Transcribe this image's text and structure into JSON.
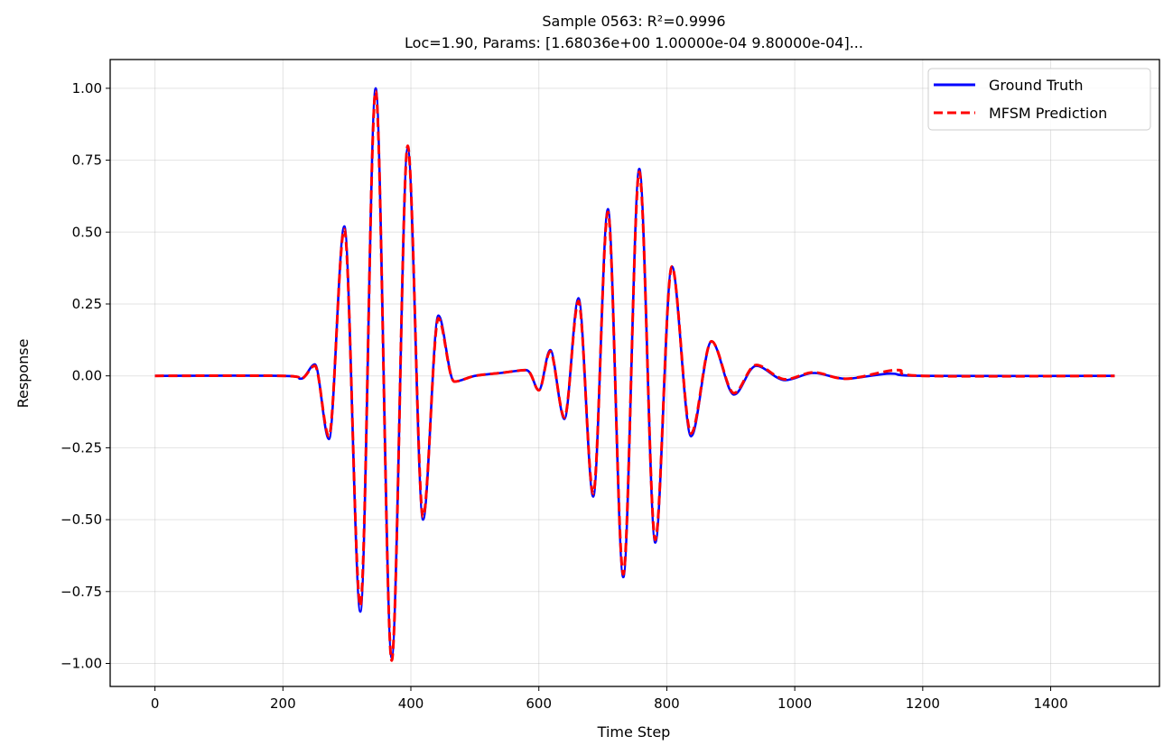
{
  "chart_data": {
    "type": "line",
    "title": "Sample 0563: R²=0.9996",
    "subtitle": "Loc=1.90, Params: [1.68036e+00 1.00000e-04 9.80000e-04]...",
    "xlabel": "Time Step",
    "ylabel": "Response",
    "xlim": [
      -70,
      1570
    ],
    "ylim": [
      -1.08,
      1.1
    ],
    "x_ticks": [
      0,
      200,
      400,
      600,
      800,
      1000,
      1200,
      1400
    ],
    "x_tick_labels": [
      "0",
      "200",
      "400",
      "600",
      "800",
      "1000",
      "1200",
      "1400"
    ],
    "y_ticks": [
      1.0,
      0.75,
      0.5,
      0.25,
      0.0,
      -0.25,
      -0.5,
      -0.75,
      -1.0
    ],
    "y_tick_labels": [
      "1.00",
      "0.75",
      "0.50",
      "0.25",
      "0.00",
      "−0.25",
      "−0.50",
      "−0.75",
      "−1.00"
    ],
    "grid": true,
    "legend_position": "top-right",
    "series": [
      {
        "name": "Ground Truth",
        "color": "#0000ff",
        "style": "solid",
        "x": [
          0,
          200,
          228,
          250,
          272,
          296,
          321,
          345,
          370,
          395,
          419,
          443,
          468,
          500,
          540,
          580,
          600,
          618,
          640,
          662,
          685,
          708,
          732,
          757,
          782,
          808,
          838,
          870,
          905,
          940,
          985,
          1030,
          1080,
          1150,
          1200,
          1500
        ],
        "y": [
          0.0,
          0.0,
          -0.01,
          0.04,
          -0.22,
          0.52,
          -0.82,
          1.0,
          -0.98,
          0.79,
          -0.5,
          0.21,
          -0.02,
          0.0,
          0.01,
          0.02,
          -0.05,
          0.09,
          -0.15,
          0.27,
          -0.42,
          0.58,
          -0.7,
          0.72,
          -0.58,
          0.38,
          -0.21,
          0.12,
          -0.065,
          0.035,
          -0.015,
          0.01,
          -0.01,
          0.008,
          0.0,
          0.0
        ]
      },
      {
        "name": "MFSM Prediction",
        "color": "#ff0000",
        "style": "dashed",
        "x": [
          0,
          200,
          228,
          250,
          272,
          296,
          321,
          345,
          370,
          395,
          419,
          443,
          468,
          500,
          540,
          580,
          600,
          618,
          640,
          662,
          685,
          708,
          732,
          757,
          782,
          808,
          838,
          870,
          905,
          940,
          985,
          1030,
          1080,
          1160,
          1200,
          1500
        ],
        "y": [
          0.0,
          0.0,
          -0.01,
          0.035,
          -0.21,
          0.51,
          -0.8,
          0.99,
          -0.99,
          0.8,
          -0.49,
          0.2,
          -0.02,
          0.0,
          0.01,
          0.02,
          -0.05,
          0.085,
          -0.145,
          0.26,
          -0.41,
          0.57,
          -0.69,
          0.71,
          -0.57,
          0.38,
          -0.2,
          0.12,
          -0.06,
          0.038,
          -0.012,
          0.012,
          -0.01,
          0.02,
          0.0,
          0.0
        ]
      }
    ]
  }
}
